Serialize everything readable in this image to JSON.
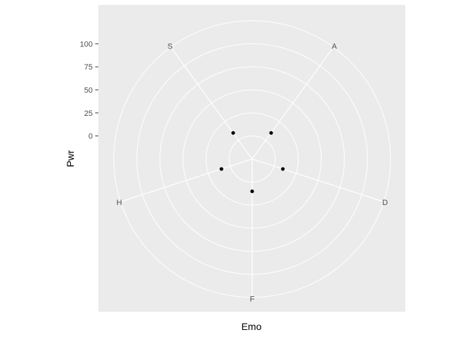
{
  "chart_data": {
    "type": "scatter",
    "coord": "polar",
    "xlabel": "Emo",
    "ylabel": "Pwr",
    "categories": [
      "A",
      "D",
      "F",
      "H",
      "S"
    ],
    "y_ticks": [
      0,
      25,
      50,
      75,
      100
    ],
    "y_tick_labels": [
      "0",
      "25",
      "50",
      "75",
      "100"
    ],
    "ylim": [
      -25,
      125
    ],
    "grid": true,
    "points": [
      {
        "x": "A",
        "y": 10
      },
      {
        "x": "D",
        "y": 10
      },
      {
        "x": "F",
        "y": 10
      },
      {
        "x": "H",
        "y": 10
      },
      {
        "x": "S",
        "y": 10
      }
    ],
    "colors": {
      "panel_bg": "#EBEBEB",
      "grid": "#FFFFFF",
      "point": "#000000",
      "axis_text": "#4D4D4D",
      "title_text": "#000000"
    }
  }
}
